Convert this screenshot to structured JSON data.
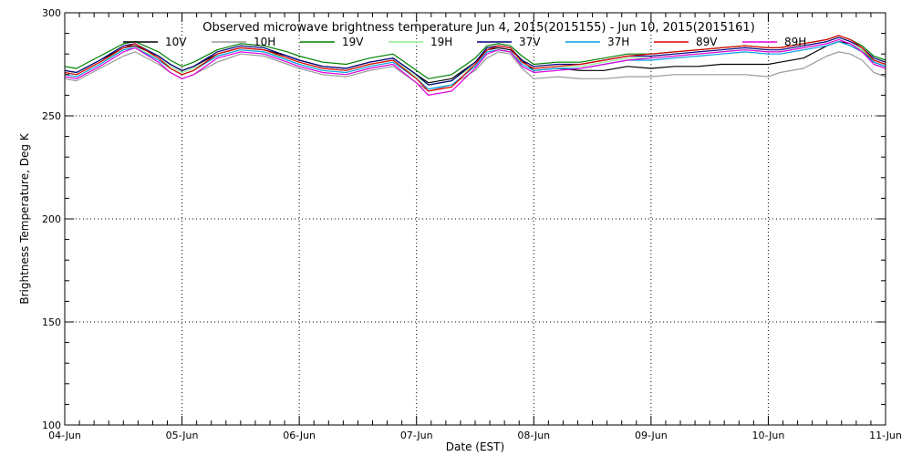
{
  "chart_data": {
    "type": "line",
    "title": "Observed microwave brightness temperature Jun  4, 2015(2015155) - Jun 10, 2015(2015161)",
    "xlabel": "Date (EST)",
    "ylabel": "Brightness Temperature, Deg K",
    "ylim": [
      100,
      300
    ],
    "yticks": [
      100,
      150,
      200,
      250,
      300
    ],
    "xlim": [
      0,
      7
    ],
    "xticks": [
      {
        "x": 0,
        "label": "04-Jun"
      },
      {
        "x": 1,
        "label": "05-Jun"
      },
      {
        "x": 2,
        "label": "06-Jun"
      },
      {
        "x": 3,
        "label": "07-Jun"
      },
      {
        "x": 4,
        "label": "08-Jun"
      },
      {
        "x": 5,
        "label": "09-Jun"
      },
      {
        "x": 6,
        "label": "10-Jun"
      },
      {
        "x": 7,
        "label": "11-Jun"
      }
    ],
    "grid": "dotted",
    "legend_position": "top",
    "x": [
      0,
      0.1,
      0.3,
      0.5,
      0.6,
      0.8,
      0.9,
      1.0,
      1.1,
      1.3,
      1.5,
      1.7,
      1.9,
      2.0,
      2.2,
      2.4,
      2.6,
      2.8,
      3.0,
      3.1,
      3.3,
      3.5,
      3.6,
      3.7,
      3.8,
      3.9,
      4.0,
      4.2,
      4.4,
      4.6,
      4.8,
      5.0,
      5.2,
      5.4,
      5.6,
      5.8,
      6.0,
      6.1,
      6.3,
      6.5,
      6.6,
      6.7,
      6.8,
      6.9,
      7.0
    ],
    "series": [
      {
        "name": "10V",
        "color": "#000000",
        "values": [
          272,
          271,
          277,
          283,
          284,
          279,
          275,
          272,
          274,
          280,
          283,
          282,
          279,
          277,
          274,
          273,
          276,
          278,
          270,
          266,
          268,
          276,
          282,
          283,
          282,
          277,
          272,
          273,
          272,
          272,
          274,
          273,
          274,
          274,
          275,
          275,
          275,
          276,
          278,
          284,
          286,
          285,
          282,
          276,
          274
        ]
      },
      {
        "name": "10H",
        "color": "#9a9a9a",
        "values": [
          268,
          267,
          273,
          279,
          281,
          275,
          271,
          268,
          270,
          276,
          280,
          279,
          275,
          273,
          270,
          269,
          272,
          274,
          266,
          262,
          265,
          272,
          278,
          281,
          280,
          273,
          268,
          269,
          268,
          268,
          269,
          269,
          270,
          270,
          270,
          270,
          269,
          271,
          273,
          279,
          281,
          280,
          277,
          271,
          269
        ]
      },
      {
        "name": "19V",
        "color": "#008000",
        "values": [
          274,
          273,
          279,
          285,
          286,
          281,
          277,
          274,
          276,
          282,
          285,
          284,
          281,
          279,
          276,
          275,
          278,
          280,
          272,
          268,
          270,
          278,
          284,
          285,
          284,
          279,
          275,
          276,
          276,
          278,
          280,
          280,
          281,
          282,
          283,
          284,
          283,
          283,
          285,
          287,
          289,
          287,
          284,
          279,
          277
        ]
      },
      {
        "name": "19H",
        "color": "#90ee90",
        "values": [
          271,
          270,
          276,
          282,
          283,
          278,
          274,
          271,
          273,
          279,
          282,
          281,
          278,
          276,
          273,
          272,
          275,
          277,
          269,
          265,
          267,
          275,
          281,
          282,
          281,
          276,
          273,
          274,
          274,
          276,
          278,
          278,
          279,
          280,
          281,
          282,
          281,
          281,
          283,
          285,
          287,
          285,
          282,
          277,
          275
        ]
      },
      {
        "name": "37V",
        "color": "#000080",
        "values": [
          272,
          271,
          277,
          284,
          285,
          279,
          275,
          272,
          274,
          281,
          284,
          283,
          279,
          277,
          274,
          273,
          276,
          278,
          270,
          265,
          267,
          276,
          283,
          284,
          283,
          277,
          274,
          275,
          275,
          277,
          279,
          279,
          280,
          281,
          282,
          283,
          282,
          282,
          284,
          286,
          288,
          286,
          283,
          278,
          276
        ]
      },
      {
        "name": "37H",
        "color": "#00a0e0",
        "values": [
          270,
          269,
          275,
          282,
          283,
          277,
          273,
          270,
          272,
          279,
          282,
          281,
          277,
          275,
          272,
          271,
          274,
          276,
          268,
          263,
          265,
          274,
          281,
          282,
          281,
          275,
          272,
          273,
          273,
          275,
          277,
          277,
          278,
          279,
          280,
          281,
          280,
          280,
          282,
          284,
          286,
          284,
          281,
          276,
          274
        ]
      },
      {
        "name": "89V",
        "color": "#e00000",
        "values": [
          271,
          270,
          276,
          283,
          285,
          278,
          273,
          270,
          272,
          280,
          283,
          282,
          278,
          276,
          273,
          272,
          275,
          277,
          268,
          262,
          264,
          275,
          282,
          284,
          283,
          276,
          273,
          274,
          275,
          277,
          279,
          280,
          281,
          282,
          283,
          284,
          283,
          283,
          285,
          287,
          289,
          287,
          283,
          277,
          275
        ]
      },
      {
        "name": "89H",
        "color": "#e000e0",
        "values": [
          269,
          268,
          274,
          281,
          283,
          276,
          271,
          268,
          270,
          278,
          281,
          280,
          276,
          274,
          271,
          270,
          273,
          275,
          266,
          260,
          262,
          273,
          280,
          282,
          281,
          274,
          271,
          272,
          273,
          275,
          277,
          278,
          279,
          280,
          281,
          282,
          281,
          281,
          283,
          285,
          287,
          285,
          281,
          275,
          273
        ]
      }
    ]
  }
}
